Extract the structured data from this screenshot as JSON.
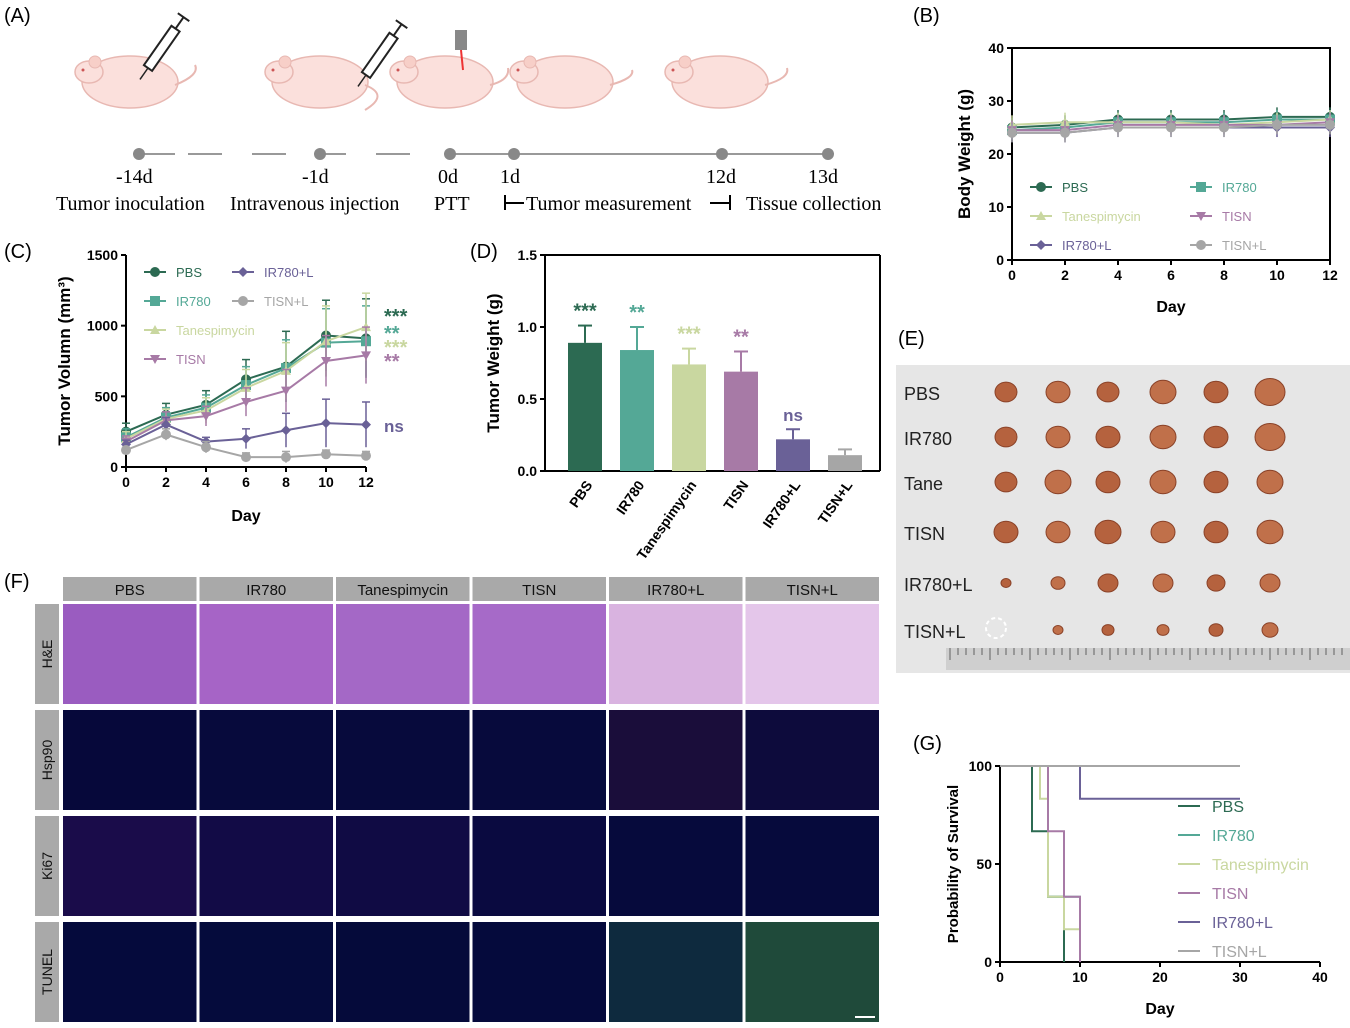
{
  "colors": {
    "PBS": "#2c6a52",
    "IR780": "#54a896",
    "Tanespimycin": "#c9d7a0",
    "TISN": "#a77aa6",
    "IR780+L": "#6a6197",
    "TISN+L": "#a6a6a6"
  },
  "panels": {
    "A": "(A)",
    "B": "(B)",
    "C": "(C)",
    "D": "(D)",
    "E": "(E)",
    "F": "(F)",
    "G": "(G)"
  },
  "timeline": {
    "days": [
      "-14d",
      "-1d",
      "0d",
      "1d",
      "12d",
      "13d"
    ],
    "labels": [
      "Tumor inoculation",
      "Intravenous injection",
      "PTT",
      "Tumor measurement",
      "Tissue collection"
    ]
  },
  "chart_data": [
    {
      "panel": "B",
      "type": "line",
      "xlabel": "Day",
      "ylabel": "Body Weight (g)",
      "x": [
        0,
        2,
        4,
        6,
        8,
        10,
        12
      ],
      "xlim": [
        0,
        12
      ],
      "ylim": [
        0,
        40
      ],
      "xticks": [
        "0",
        "2",
        "4",
        "6",
        "8",
        "10",
        "12"
      ],
      "yticks": [
        "0",
        "10",
        "20",
        "30",
        "40"
      ],
      "series": [
        {
          "name": "PBS",
          "values": [
            25,
            25.5,
            26.5,
            26.5,
            26.5,
            27,
            27
          ]
        },
        {
          "name": "IR780",
          "values": [
            24.5,
            25,
            26,
            26,
            26,
            26.5,
            26.5
          ]
        },
        {
          "name": "Tanespimycin",
          "values": [
            25.5,
            26,
            26,
            26,
            25.5,
            26,
            26.5
          ]
        },
        {
          "name": "TISN",
          "values": [
            24.5,
            24.5,
            25.5,
            25.5,
            25.5,
            25.5,
            26
          ]
        },
        {
          "name": "IR780+L",
          "values": [
            24,
            24,
            25,
            25,
            25,
            25,
            25
          ]
        },
        {
          "name": "TISN+L",
          "values": [
            24,
            24,
            25,
            25,
            25,
            25.5,
            25.5
          ]
        }
      ]
    },
    {
      "panel": "C",
      "type": "line",
      "xlabel": "Day",
      "ylabel": "Tumor Volumn (mm³)",
      "x": [
        0,
        2,
        4,
        6,
        8,
        10,
        12
      ],
      "xlim": [
        0,
        12
      ],
      "ylim": [
        0,
        1500
      ],
      "xticks": [
        "0",
        "2",
        "4",
        "6",
        "8",
        "10",
        "12"
      ],
      "yticks": [
        "0",
        "500",
        "1000",
        "1500"
      ],
      "series": [
        {
          "name": "PBS",
          "values": [
            250,
            370,
            440,
            620,
            710,
            930,
            910
          ],
          "err": [
            60,
            80,
            100,
            140,
            250,
            250,
            280
          ]
        },
        {
          "name": "IR780",
          "values": [
            210,
            350,
            420,
            580,
            700,
            880,
            890
          ],
          "err": [
            60,
            70,
            90,
            130,
            200,
            240,
            250
          ]
        },
        {
          "name": "Tanespimycin",
          "values": [
            200,
            340,
            400,
            560,
            680,
            890,
            990
          ],
          "err": [
            50,
            70,
            90,
            130,
            200,
            250,
            240
          ]
        },
        {
          "name": "TISN",
          "values": [
            180,
            330,
            360,
            460,
            540,
            750,
            790
          ],
          "err": [
            40,
            60,
            70,
            100,
            150,
            180,
            200
          ]
        },
        {
          "name": "IR780+L",
          "values": [
            160,
            300,
            180,
            200,
            260,
            310,
            300
          ],
          "err": [
            30,
            50,
            30,
            70,
            120,
            170,
            160
          ]
        },
        {
          "name": "TISN+L",
          "values": [
            120,
            230,
            140,
            70,
            70,
            90,
            80
          ],
          "err": [
            20,
            40,
            40,
            30,
            40,
            30,
            30
          ]
        }
      ],
      "significance": [
        {
          "text": "***",
          "series": "PBS"
        },
        {
          "text": "**",
          "series": "IR780"
        },
        {
          "text": "***",
          "series": "Tanespimycin"
        },
        {
          "text": "**",
          "series": "TISN"
        },
        {
          "text": "ns",
          "series": "IR780+L"
        }
      ]
    },
    {
      "panel": "D",
      "type": "bar",
      "xlabel": "",
      "ylabel": "Tumor Weight (g)",
      "categories": [
        "PBS",
        "IR780",
        "Tanespimycin",
        "TISN",
        "IR780+L",
        "TISN+L"
      ],
      "values": [
        0.89,
        0.84,
        0.74,
        0.69,
        0.22,
        0.11
      ],
      "err": [
        0.12,
        0.16,
        0.11,
        0.14,
        0.07,
        0.04
      ],
      "ylim": [
        0,
        1.5
      ],
      "yticks": [
        "0.0",
        "0.5",
        "1.0",
        "1.5"
      ],
      "significance": [
        "***",
        "**",
        "***",
        "**",
        "ns",
        ""
      ]
    },
    {
      "panel": "G",
      "type": "line",
      "xlabel": "Day",
      "ylabel": "Probability of Survival",
      "xlim": [
        0,
        40
      ],
      "ylim": [
        0,
        100
      ],
      "xticks": [
        "0",
        "10",
        "20",
        "30",
        "40"
      ],
      "yticks": [
        "0",
        "50",
        "100"
      ],
      "series": [
        {
          "name": "PBS",
          "x": [
            0,
            4,
            4,
            6,
            6,
            8,
            8
          ],
          "values": [
            100,
            100,
            66.7,
            66.7,
            33.3,
            33.3,
            0
          ]
        },
        {
          "name": "IR780",
          "x": [
            0,
            6,
            6,
            10,
            10
          ],
          "values": [
            100,
            100,
            33.3,
            33.3,
            0
          ]
        },
        {
          "name": "Tanespimycin",
          "x": [
            0,
            5,
            5,
            6,
            6,
            8,
            8,
            10,
            10
          ],
          "values": [
            100,
            100,
            83.3,
            83.3,
            33.3,
            33.3,
            16.7,
            16.7,
            0
          ]
        },
        {
          "name": "TISN",
          "x": [
            0,
            6,
            6,
            8,
            8,
            10,
            10
          ],
          "values": [
            100,
            100,
            66.7,
            66.7,
            33.3,
            33.3,
            0
          ]
        },
        {
          "name": "IR780+L",
          "x": [
            0,
            10,
            10,
            30
          ],
          "values": [
            100,
            100,
            83.3,
            83.3
          ]
        },
        {
          "name": "TISN+L",
          "x": [
            0,
            30
          ],
          "values": [
            100,
            100
          ]
        }
      ]
    }
  ],
  "photo": {
    "rows": [
      "PBS",
      "IR780",
      "Tane",
      "TISN",
      "IR780+L",
      "TISN+L"
    ]
  },
  "histology": {
    "columns": [
      "PBS",
      "IR780",
      "Tanespimycin",
      "TISN",
      "IR780+L",
      "TISN+L"
    ],
    "rows": [
      "H&E",
      "Hsp90",
      "Ki67",
      "TUNEL"
    ]
  }
}
